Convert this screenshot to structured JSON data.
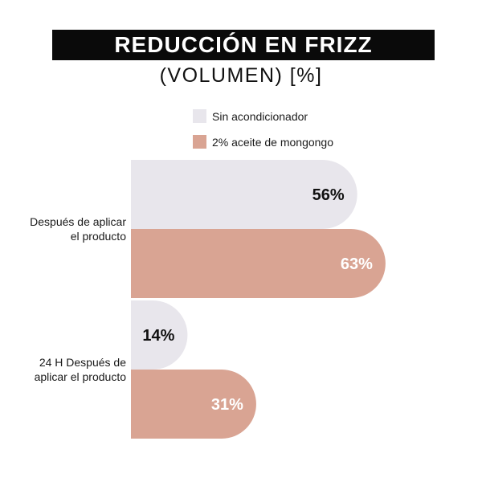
{
  "chart_data": {
    "type": "bar",
    "orientation": "horizontal",
    "title": "REDUCCIÓN EN FRIZZ",
    "subtitle": "(VOLUMEN) [%]",
    "categories": [
      "Después de aplicar el producto",
      "24 H Después de aplicar el producto"
    ],
    "category_lines": [
      [
        "Después de aplicar",
        "el producto"
      ],
      [
        "24 H Después de",
        "aplicar el producto"
      ]
    ],
    "series": [
      {
        "name": "Sin acondicionador",
        "values": [
          56,
          14
        ],
        "color": "#e8e6ec",
        "label_color": "#111111"
      },
      {
        "name": "2% aceite de mongongo",
        "values": [
          63,
          31
        ],
        "color": "#d9a493",
        "label_color": "#ffffff"
      }
    ],
    "value_suffix": "%",
    "xlim": [
      0,
      100
    ],
    "legend_position": "top"
  }
}
